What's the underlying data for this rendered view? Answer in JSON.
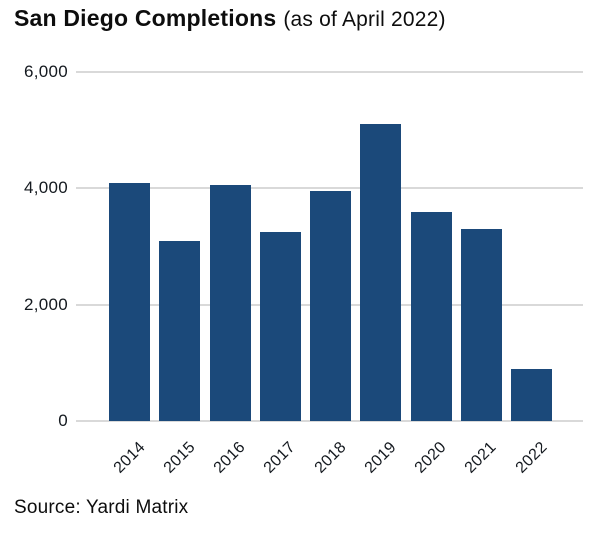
{
  "title": {
    "main": "San Diego Completions",
    "suffix": "(as of April 2022)"
  },
  "source": "Source: Yardi Matrix",
  "colors": {
    "bar": "#1b497a",
    "gridline": "#d9d9d9",
    "text": "#14191f",
    "title_text": "#0d0d0d",
    "background": "#ffffff"
  },
  "chart_data": {
    "type": "bar",
    "title": "San Diego Completions (as of April 2022)",
    "categories": [
      "2014",
      "2015",
      "2016",
      "2017",
      "2018",
      "2019",
      "2020",
      "2021",
      "2022"
    ],
    "values": [
      4100,
      3100,
      4050,
      3250,
      3950,
      5100,
      3600,
      3300,
      900
    ],
    "xlabel": "",
    "ylabel": "",
    "ylim": [
      0,
      6000
    ],
    "yticks": [
      0,
      2000,
      4000,
      6000
    ],
    "ytick_labels": [
      "0",
      "2,000",
      "4,000",
      "6,000"
    ],
    "grid": true,
    "legend": false,
    "bar_color": "#1b497a",
    "x_label_rotation_deg": 45,
    "source": "Source: Yardi Matrix"
  }
}
